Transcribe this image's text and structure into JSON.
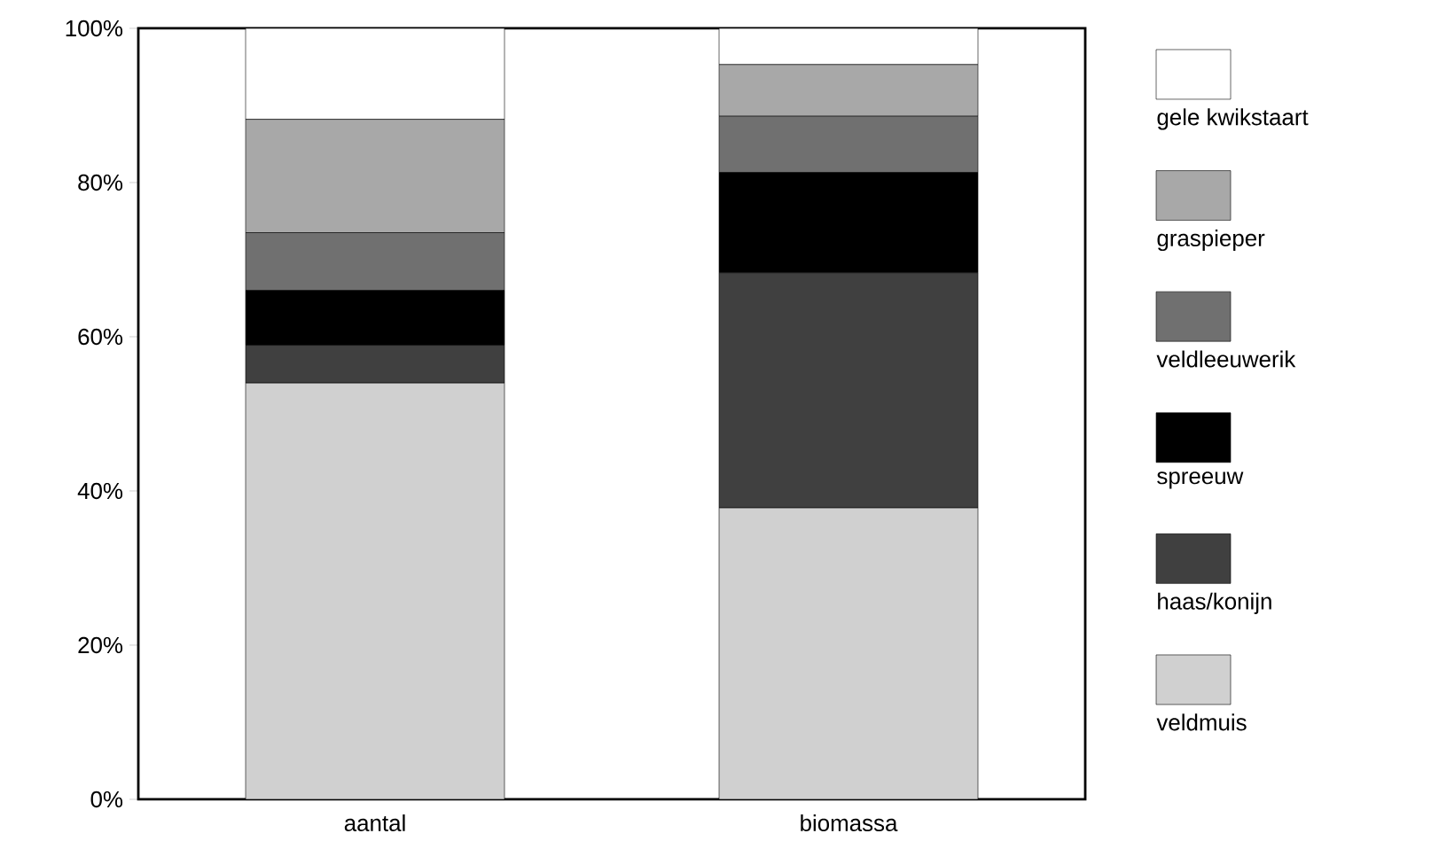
{
  "chart_data": {
    "type": "bar",
    "stacked": true,
    "categories": [
      "aantal",
      "biomassa"
    ],
    "series": [
      {
        "name": "veldmuis",
        "color": "#d0d0d0",
        "values": [
          54.0,
          37.8
        ]
      },
      {
        "name": "haas/konijn",
        "color": "#404040",
        "values": [
          4.9,
          30.5
        ]
      },
      {
        "name": "spreeuw",
        "color": "#000000",
        "values": [
          7.1,
          13.0
        ]
      },
      {
        "name": "veldleeuwerik",
        "color": "#707070",
        "values": [
          7.5,
          7.3
        ]
      },
      {
        "name": "graspieper",
        "color": "#a8a8a8",
        "values": [
          14.7,
          6.7
        ]
      },
      {
        "name": "gele kwikstaart",
        "color": "#ffffff",
        "values": [
          11.8,
          4.7
        ]
      }
    ],
    "ylim": [
      0,
      100
    ],
    "yticks": [
      {
        "value": 0,
        "label": "0%"
      },
      {
        "value": 20,
        "label": "20%"
      },
      {
        "value": 40,
        "label": "40%"
      },
      {
        "value": 60,
        "label": "60%"
      },
      {
        "value": 80,
        "label": "80%"
      },
      {
        "value": 100,
        "label": "100%"
      }
    ],
    "legend": "right"
  }
}
